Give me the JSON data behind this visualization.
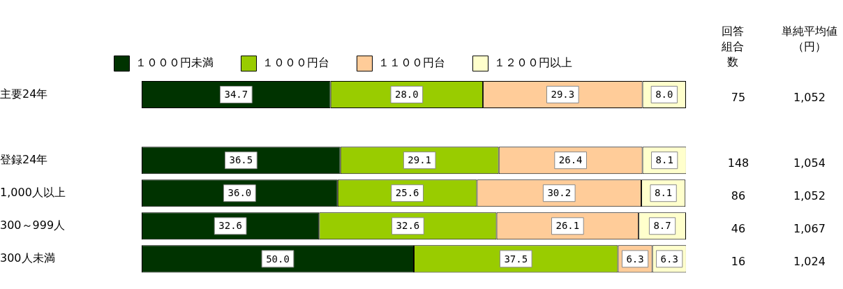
{
  "chart_data": {
    "type": "bar",
    "orientation": "horizontal",
    "stacked": true,
    "categories": [
      "主要24年",
      null,
      "登録24年",
      "1,000人以上",
      "300～999人",
      "300人未満"
    ],
    "series": [
      {
        "name": "１０００円未満",
        "color": "#003300",
        "values": [
          34.7,
          null,
          36.5,
          36.0,
          32.6,
          50.0
        ],
        "value_labels": [
          "34.7",
          null,
          "36.5",
          "36.0",
          "32.6",
          "50.0"
        ]
      },
      {
        "name": "１０００円台",
        "color": "#99cc00",
        "values": [
          28.0,
          null,
          29.1,
          25.6,
          32.6,
          37.5
        ],
        "value_labels": [
          "28.0",
          null,
          "29.1",
          "25.6",
          "32.6",
          "37.5"
        ]
      },
      {
        "name": "１１００円台",
        "color": "#ffcc99",
        "values": [
          29.3,
          null,
          26.4,
          30.2,
          26.1,
          6.3
        ],
        "value_labels": [
          "29.3",
          null,
          "26.4",
          "30.2",
          "26.1",
          "6.3"
        ]
      },
      {
        "name": "１２００円以上",
        "color": "#ffffcc",
        "values": [
          8.0,
          null,
          8.1,
          8.1,
          8.7,
          6.3
        ],
        "value_labels": [
          "8.0",
          null,
          "8.1",
          "8.1",
          "8.7",
          "6.3"
        ]
      }
    ],
    "xlim": [
      0,
      100
    ],
    "tick_labels": "y",
    "legend": "top",
    "annotations": [
      "回答組合数",
      "単純平均値（円）",
      "75",
      "1,052",
      "148",
      "1,054",
      "86",
      "1,052",
      "46",
      "1,067",
      "16",
      "1,024"
    ]
  }
}
